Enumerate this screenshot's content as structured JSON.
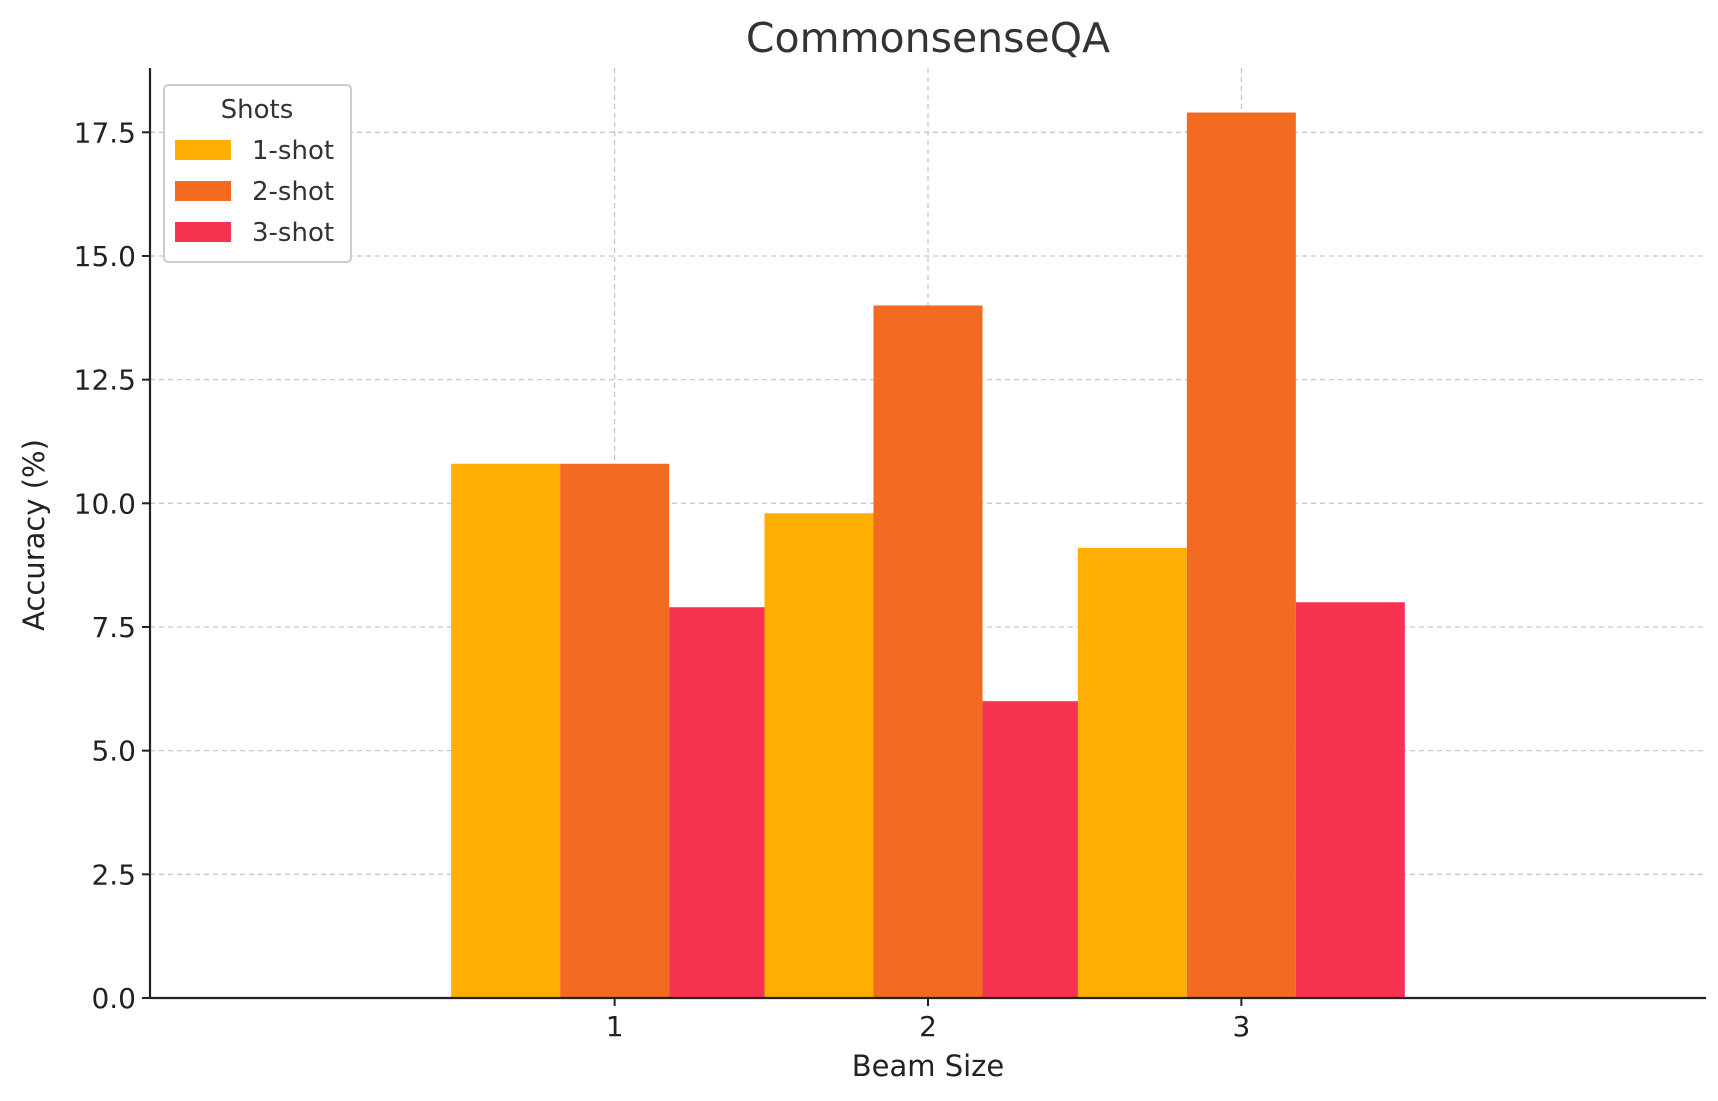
{
  "chart_data": {
    "type": "bar",
    "title": "CommonsenseQA",
    "xlabel": "Beam Size",
    "ylabel": "Accuracy (%)",
    "categories": [
      "1",
      "2",
      "3"
    ],
    "series": [
      {
        "name": "1-shot",
        "values": [
          10.8,
          9.8,
          9.1
        ],
        "color": "#FFAE03"
      },
      {
        "name": "2-shot",
        "values": [
          10.8,
          14.0,
          17.9
        ],
        "color": "#F26B21"
      },
      {
        "name": "3-shot",
        "values": [
          7.9,
          6.0,
          8.0
        ],
        "color": "#F63451"
      }
    ],
    "ylim": [
      0,
      18.8
    ],
    "yticks": [
      "0.0",
      "2.5",
      "5.0",
      "7.5",
      "10.0",
      "12.5",
      "15.0",
      "17.5"
    ],
    "legend": {
      "title": "Shots",
      "placement": "top-left"
    },
    "grid": true
  }
}
